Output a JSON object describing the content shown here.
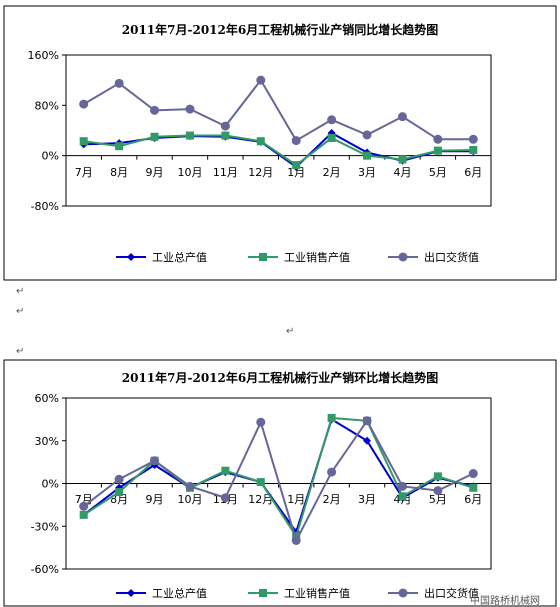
{
  "chart_data": [
    {
      "type": "line",
      "title": "2011年7月-2012年6月工程机械行业产销同比增长趋势图",
      "categories": [
        "7月",
        "8月",
        "9月",
        "10月",
        "11月",
        "12月",
        "1月",
        "2月",
        "3月",
        "4月",
        "5月",
        "6月"
      ],
      "ylim": [
        -80,
        160
      ],
      "yticks": [
        "160%",
        "80%",
        "0%",
        "-80%"
      ],
      "ytick_values": [
        160,
        80,
        0,
        -80
      ],
      "grid": false,
      "legend_position": "bottom",
      "series": [
        {
          "name": "工业总产值",
          "color": "#0000cc",
          "marker": "diamond",
          "values": [
            18,
            20,
            28,
            31,
            30,
            22,
            -18,
            36,
            5,
            -8,
            7,
            7
          ]
        },
        {
          "name": "工业销售产值",
          "color": "#339966",
          "marker": "square",
          "values": [
            23,
            15,
            30,
            32,
            32,
            23,
            -15,
            28,
            0,
            -6,
            8,
            9
          ]
        },
        {
          "name": "出口交货值",
          "color": "#666699",
          "marker": "circle",
          "values": [
            82,
            115,
            72,
            74,
            47,
            120,
            24,
            57,
            33,
            62,
            26,
            26
          ]
        }
      ]
    },
    {
      "type": "line",
      "title": "2011年7月-2012年6月工程机械行业产销环比增长趋势图",
      "categories": [
        "7月",
        "8月",
        "9月",
        "10月",
        "11月",
        "12月",
        "1月",
        "2月",
        "3月",
        "4月",
        "5月",
        "6月"
      ],
      "ylim": [
        -60,
        60
      ],
      "yticks": [
        "60%",
        "30%",
        "0%",
        "-30%",
        "-60%"
      ],
      "ytick_values": [
        60,
        30,
        0,
        -30,
        -60
      ],
      "grid": false,
      "legend_position": "bottom",
      "series": [
        {
          "name": "工业总产值",
          "color": "#0000cc",
          "marker": "diamond",
          "values": [
            -22,
            -3,
            13,
            -3,
            8,
            1,
            -34,
            45,
            30,
            -10,
            4,
            -2
          ]
        },
        {
          "name": "工业销售产值",
          "color": "#339966",
          "marker": "square",
          "values": [
            -22,
            -6,
            16,
            -3,
            9,
            1,
            -37,
            46,
            44,
            -9,
            5,
            -3
          ]
        },
        {
          "name": "出口交货值",
          "color": "#666699",
          "marker": "circle",
          "values": [
            -16,
            3,
            16,
            -2,
            -10,
            43,
            -40,
            8,
            44,
            -2,
            -5,
            7
          ]
        }
      ]
    }
  ],
  "page": {
    "watermark": "中国路桥机械网"
  }
}
